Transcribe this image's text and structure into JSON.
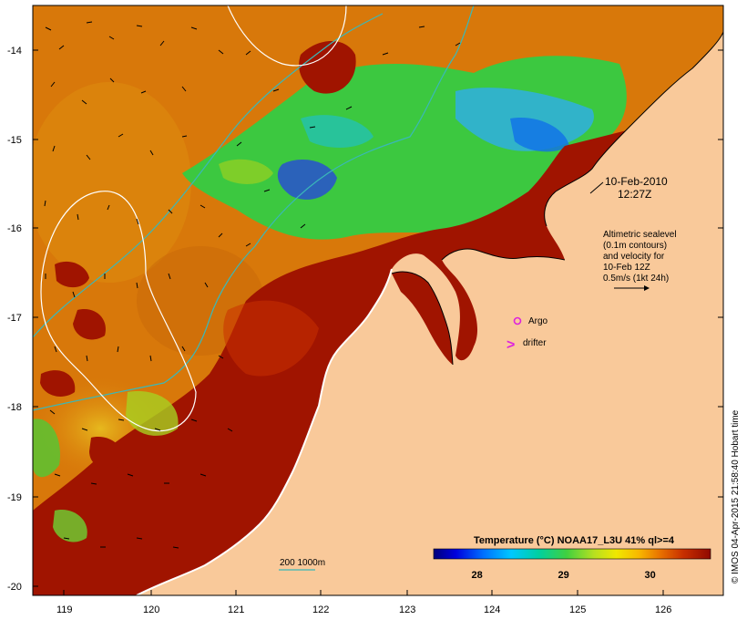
{
  "map": {
    "date_line1": "10-Feb-2010",
    "date_line2": "12:27Z",
    "altimetry_note": [
      "Altimetric sealevel",
      "(0.1m contours)",
      "and velocity for",
      "10-Feb 12Z",
      "0.5m/s (1kt 24h)"
    ],
    "legend_argo": "Argo",
    "legend_drifter": "drifter",
    "drifter_symbol": ">",
    "depth_contour_label": "200  1000m",
    "credit": "© IMOS 04-Apr-2015 21:58:40 Hobart time",
    "colorbar": {
      "title": "Temperature (°C) NOAA17_L3U 41% ql>=4",
      "min": 27.5,
      "max": 30.7,
      "ticks": [
        "28",
        "29",
        "30"
      ],
      "tick_values": [
        28,
        29,
        30
      ]
    },
    "x_ticks": [
      "119",
      "120",
      "121",
      "122",
      "123",
      "124",
      "125",
      "126"
    ],
    "x_tick_values": [
      119,
      120,
      121,
      122,
      123,
      124,
      125,
      126
    ],
    "y_ticks": [
      "-14",
      "-15",
      "-16",
      "-17",
      "-18",
      "-19",
      "-20"
    ],
    "y_tick_values": [
      -14,
      -15,
      -16,
      -17,
      -18,
      -19,
      -20
    ],
    "lon_range": [
      118.65,
      126.65
    ],
    "lat_range": [
      -20.1,
      -13.6
    ],
    "colors": {
      "land": "#f9c99a",
      "hot": "#a01400",
      "warm_orange": "#d8780a",
      "depth_contour": "#3ab8b8",
      "sealevel_contour": "#ffffff",
      "argo": "#dd22dd",
      "drifter": "#dd22dd"
    }
  }
}
